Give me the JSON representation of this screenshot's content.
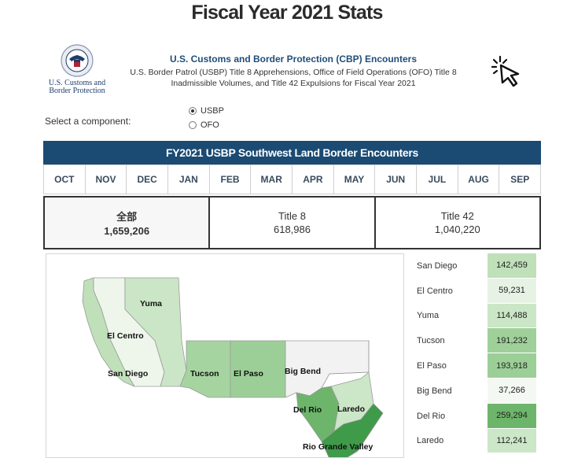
{
  "page": {
    "title": "Fiscal Year 2021 Stats"
  },
  "logo": {
    "line1": "U.S. Customs and",
    "line2": "Border Protection"
  },
  "header": {
    "title": "U.S. Customs and Border Protection (CBP) Encounters",
    "subtitle_line1": "U.S. Border Patrol (USBP) Title 8 Apprehensions, Office of Field Operations (OFO) Title 8",
    "subtitle_line2": "Inadmissible Volumes, and Title 42 Expulsions for Fiscal Year 2021"
  },
  "component_select": {
    "label": "Select a component:",
    "options": [
      {
        "label": "USBP",
        "checked": true
      },
      {
        "label": "OFO",
        "checked": false
      }
    ]
  },
  "banner": {
    "title": "FY2021 USBP Southwest Land Border Encounters"
  },
  "months": [
    "OCT",
    "NOV",
    "DEC",
    "JAN",
    "FEB",
    "MAR",
    "APR",
    "MAY",
    "JUN",
    "JUL",
    "AUG",
    "SEP"
  ],
  "totals": [
    {
      "label": "全部",
      "value": "1,659,206"
    },
    {
      "label": "Title 8",
      "value": "618,986"
    },
    {
      "label": "Title 42",
      "value": "1,040,220"
    }
  ],
  "map": {
    "labels": {
      "yuma": "Yuma",
      "el_centro": "El Centro",
      "san_diego": "San Diego",
      "tucson": "Tucson",
      "el_paso": "El Paso",
      "big_bend": "Big Bend",
      "del_rio": "Del Rio",
      "laredo": "Laredo",
      "rio_grande_valley": "Rio Grande Valley"
    }
  },
  "sectors": [
    {
      "name": "San Diego",
      "value": "142,459",
      "color": "#bfe0b9"
    },
    {
      "name": "El Centro",
      "value": "59,231",
      "color": "#e6f3e4"
    },
    {
      "name": "Yuma",
      "value": "114,488",
      "color": "#cbe6c6"
    },
    {
      "name": "Tucson",
      "value": "191,232",
      "color": "#9fd09a"
    },
    {
      "name": "El Paso",
      "value": "193,918",
      "color": "#9ccf97"
    },
    {
      "name": "Big Bend",
      "value": "37,266",
      "color": "#f3f8f2"
    },
    {
      "name": "Del Rio",
      "value": "259,294",
      "color": "#6db56a"
    },
    {
      "name": "Laredo",
      "value": "112,241",
      "color": "#cce6c8"
    }
  ]
}
